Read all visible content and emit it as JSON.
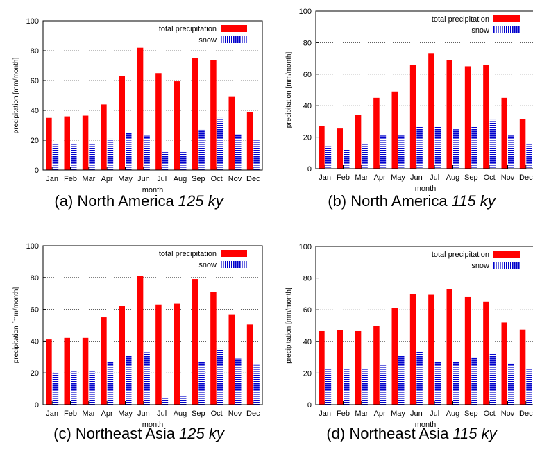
{
  "chart_data": [
    {
      "type": "bar",
      "caption": "(a) North America",
      "caption_period": "125 ky",
      "xlabel": "month",
      "ylabel": "precipitation [mm/month]",
      "categories": [
        "Jan",
        "Feb",
        "Mar",
        "Apr",
        "May",
        "Jun",
        "Jul",
        "Aug",
        "Sep",
        "Oct",
        "Nov",
        "Dec"
      ],
      "series": [
        {
          "name": "total precipitation",
          "color": "#ff0000",
          "values": [
            35,
            36,
            36.5,
            44,
            63,
            82,
            65,
            59.5,
            75,
            73.5,
            49,
            39
          ]
        },
        {
          "name": "snow",
          "color": "#0000cc",
          "values": [
            18,
            18,
            18,
            21,
            25,
            23,
            12,
            12,
            27,
            35,
            24,
            20
          ]
        }
      ],
      "ylim": [
        0,
        100
      ],
      "yticks": [
        0,
        20,
        40,
        60,
        80,
        100
      ],
      "grid": true,
      "legend": "upper right"
    },
    {
      "type": "bar",
      "caption": "(b) North America",
      "caption_period": "115 ky",
      "xlabel": "month",
      "ylabel": "precipitation [mm/month]",
      "categories": [
        "Jan",
        "Feb",
        "Mar",
        "Apr",
        "May",
        "Jun",
        "Jul",
        "Aug",
        "Sep",
        "Oct",
        "Nov",
        "Dec"
      ],
      "series": [
        {
          "name": "total precipitation",
          "color": "#ff0000",
          "values": [
            27,
            25.5,
            34,
            45,
            49,
            66,
            73,
            69,
            65,
            66,
            45,
            31.5
          ]
        },
        {
          "name": "snow",
          "color": "#0000cc",
          "values": [
            14,
            12,
            16,
            21,
            21,
            27,
            27,
            25,
            27,
            31,
            21,
            16
          ]
        }
      ],
      "ylim": [
        0,
        100
      ],
      "yticks": [
        0,
        20,
        40,
        60,
        80,
        100
      ],
      "grid": true,
      "legend": "upper right"
    },
    {
      "type": "bar",
      "caption": "(c) Northeast Asia",
      "caption_period": "125 ky",
      "xlabel": "month",
      "ylabel": "precipitation [mm/month]",
      "categories": [
        "Jan",
        "Feb",
        "Mar",
        "Apr",
        "May",
        "Jun",
        "Jul",
        "Aug",
        "Sep",
        "Oct",
        "Nov",
        "Dec"
      ],
      "series": [
        {
          "name": "total precipitation",
          "color": "#ff0000",
          "values": [
            41,
            42,
            42,
            55,
            62,
            81,
            63,
            63.5,
            79,
            71,
            56.5,
            50.5
          ]
        },
        {
          "name": "snow",
          "color": "#0000cc",
          "values": [
            20,
            21,
            21,
            27,
            31,
            33,
            4,
            6,
            27,
            35,
            29,
            25
          ]
        }
      ],
      "ylim": [
        0,
        100
      ],
      "yticks": [
        0,
        20,
        40,
        60,
        80,
        100
      ],
      "grid": true,
      "legend": "upper right"
    },
    {
      "type": "bar",
      "caption": "(d) Northeast Asia",
      "caption_period": "115 ky",
      "xlabel": "month",
      "ylabel": "precipitation [mm/month]",
      "categories": [
        "Jan",
        "Feb",
        "Mar",
        "Apr",
        "May",
        "Jun",
        "Jul",
        "Aug",
        "Sep",
        "Oct",
        "Nov",
        "Dec"
      ],
      "series": [
        {
          "name": "total precipitation",
          "color": "#ff0000",
          "values": [
            46.5,
            47,
            46.5,
            50,
            61,
            70,
            69.5,
            73,
            68,
            65,
            52,
            47.5
          ]
        },
        {
          "name": "snow",
          "color": "#0000cc",
          "values": [
            23,
            23,
            23,
            25,
            31,
            34,
            27,
            27,
            30,
            32,
            26,
            23
          ]
        }
      ],
      "ylim": [
        0,
        100
      ],
      "yticks": [
        0,
        20,
        40,
        60,
        80,
        100
      ],
      "grid": true,
      "legend": "upper right"
    }
  ]
}
